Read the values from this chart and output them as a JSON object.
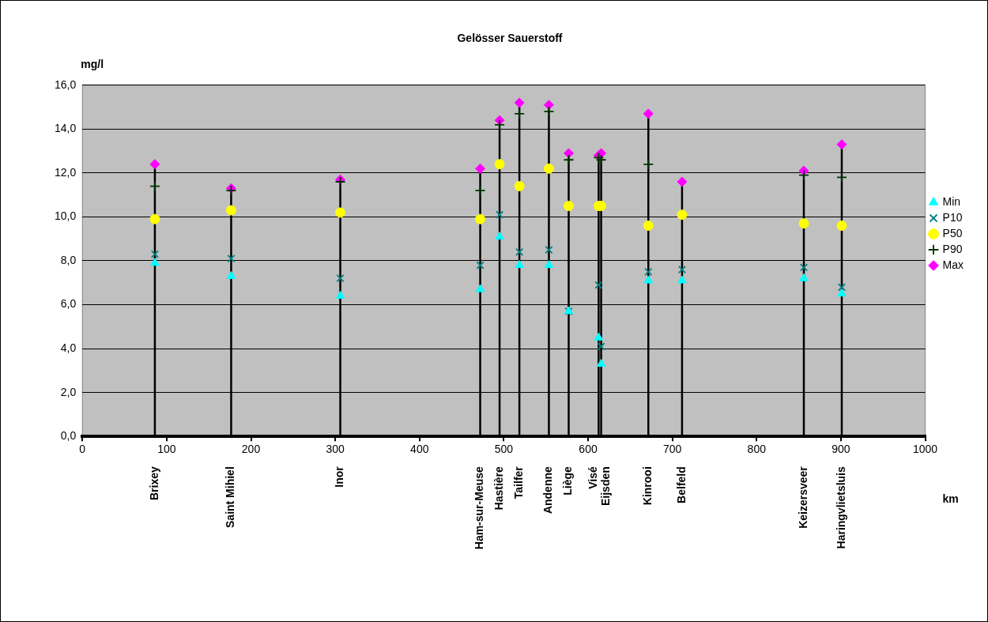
{
  "chart_data": {
    "type": "scatter",
    "title": "Gelösser Sauerstoff",
    "xlabel": "km",
    "ylabel": "mg/l",
    "x": [
      86,
      176.5,
      306,
      472,
      495,
      518.5,
      553.5,
      577,
      612.5,
      615.5,
      671.5,
      711.5,
      856,
      901
    ],
    "series": [
      {
        "name": "Min",
        "color": "#00ffff",
        "marker": "triangle",
        "values": [
          7.9,
          7.3,
          6.4,
          6.7,
          9.1,
          7.8,
          7.8,
          5.7,
          4.5,
          3.3,
          7.1,
          7.1,
          7.2,
          6.5
        ]
      },
      {
        "name": "P10",
        "color": "#008080",
        "marker": "cross",
        "values": [
          8.3,
          8.1,
          7.2,
          7.8,
          10.1,
          8.4,
          8.5,
          5.7,
          6.9,
          4.1,
          7.5,
          7.6,
          7.7,
          6.8
        ]
      },
      {
        "name": "P50",
        "color": "#ffff00",
        "marker": "circle",
        "values": [
          9.9,
          10.3,
          10.2,
          9.9,
          12.4,
          11.4,
          12.2,
          10.5,
          10.5,
          10.5,
          9.6,
          10.1,
          9.7,
          9.6
        ]
      },
      {
        "name": "P90",
        "color": "#003300",
        "marker": "plus",
        "values": [
          11.4,
          11.2,
          11.6,
          11.2,
          14.2,
          14.7,
          14.8,
          12.6,
          12.7,
          12.6,
          12.4,
          null,
          11.9,
          11.8
        ]
      },
      {
        "name": "Max",
        "color": "#ff00ff",
        "marker": "diamond",
        "values": [
          12.4,
          11.3,
          11.7,
          12.2,
          14.4,
          15.2,
          15.1,
          12.9,
          12.8,
          12.9,
          14.7,
          11.6,
          12.1,
          13.3
        ],
        "errors": [
          [
            0,
            12.4
          ],
          [
            0,
            11.3
          ],
          [
            0,
            11.7
          ],
          [
            0,
            12.2
          ],
          [
            0,
            14.4
          ],
          [
            0,
            15.2
          ],
          [
            0,
            15.1
          ],
          [
            0,
            12.9
          ],
          [
            0,
            12.8
          ],
          [
            0,
            12.9
          ],
          [
            0,
            14.7
          ],
          [
            0,
            11.6
          ],
          [
            0,
            12.1
          ],
          [
            0,
            13.3
          ]
        ]
      }
    ],
    "xlim": [
      0,
      1000
    ],
    "xticks": [
      0,
      100,
      200,
      300,
      400,
      500,
      600,
      700,
      800,
      900,
      1000
    ],
    "ylim": [
      0,
      16
    ],
    "yticks": [
      {
        "value": 0,
        "label": "0,0"
      },
      {
        "value": 2,
        "label": "2,0"
      },
      {
        "value": 4,
        "label": "4,0"
      },
      {
        "value": 6,
        "label": "6,0"
      },
      {
        "value": 8,
        "label": "8,0"
      },
      {
        "value": 10,
        "label": "10,0"
      },
      {
        "value": 12,
        "label": "12,0"
      },
      {
        "value": 14,
        "label": "14,0"
      },
      {
        "value": 16,
        "label": "16,0"
      }
    ],
    "grid": "y",
    "legend": "right",
    "annotations": [
      "Brixey",
      "Saint Mihiel",
      "Inor",
      "Ham-sur-Meuse",
      "Hastière",
      "Tailfer",
      "Andenne",
      "Liège",
      "Visé",
      "Eijsden",
      "Kinrooi",
      "Belfeld",
      "Keizersveer",
      "Haringvlietsluis"
    ]
  }
}
